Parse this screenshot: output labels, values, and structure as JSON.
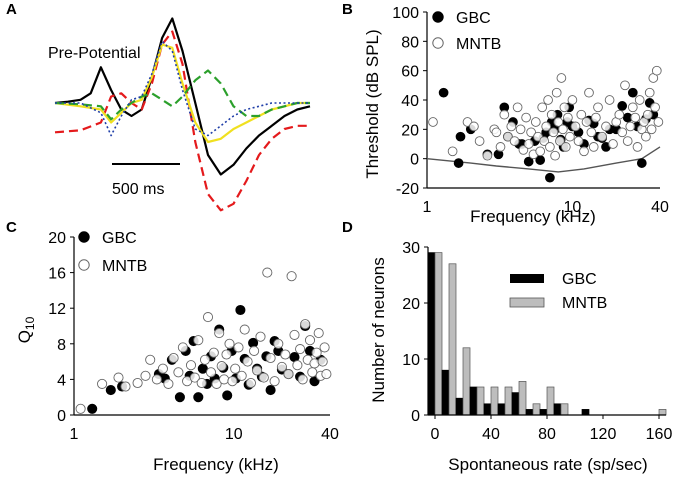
{
  "chart_data": [
    {
      "panel": "A",
      "type": "line",
      "annotation": "Pre-Potential",
      "scalebar_label": "500 ms",
      "series": [
        {
          "name": "black",
          "color": "#000000",
          "dash": "solid",
          "x": [
            0,
            5,
            10,
            14,
            18,
            22,
            26,
            30,
            34,
            38,
            42,
            46,
            50,
            55,
            60,
            65,
            70,
            75,
            80,
            85,
            90,
            95,
            100
          ],
          "y": [
            0.0,
            0.02,
            0.05,
            0.15,
            0.55,
            0.2,
            -0.1,
            -0.2,
            -0.1,
            0.4,
            1.0,
            1.3,
            0.8,
            0.0,
            -0.8,
            -1.1,
            -0.95,
            -0.7,
            -0.5,
            -0.35,
            -0.2,
            -0.1,
            -0.05
          ]
        },
        {
          "name": "red",
          "color": "#e41a1c",
          "dash": "dashed",
          "x": [
            0,
            10,
            18,
            22,
            26,
            30,
            34,
            38,
            42,
            46,
            50,
            55,
            60,
            65,
            70,
            75,
            80,
            85,
            90,
            95,
            100
          ],
          "y": [
            -0.45,
            -0.42,
            -0.3,
            0.1,
            0.15,
            0.0,
            -0.1,
            0.3,
            0.9,
            1.1,
            0.6,
            -0.6,
            -1.4,
            -1.65,
            -1.55,
            -1.2,
            -0.8,
            -0.55,
            -0.4,
            -0.35,
            -0.35
          ]
        },
        {
          "name": "yellow",
          "color": "#f0e020",
          "dash": "solid",
          "x": [
            0,
            10,
            18,
            22,
            26,
            30,
            34,
            38,
            42,
            46,
            50,
            55,
            60,
            65,
            70,
            75,
            80,
            85,
            90,
            95,
            100
          ],
          "y": [
            0.0,
            -0.05,
            -0.1,
            -0.3,
            -0.15,
            0.0,
            0.05,
            0.4,
            0.9,
            0.85,
            0.3,
            -0.3,
            -0.6,
            -0.55,
            -0.4,
            -0.3,
            -0.2,
            -0.1,
            -0.05,
            0.0,
            0.0
          ]
        },
        {
          "name": "green",
          "color": "#2ca02c",
          "dash": "dashed",
          "x": [
            0,
            10,
            18,
            22,
            26,
            30,
            34,
            38,
            42,
            46,
            50,
            55,
            60,
            65,
            70,
            75,
            80,
            85,
            90,
            95,
            100
          ],
          "y": [
            0.0,
            -0.02,
            -0.05,
            -0.25,
            -0.1,
            0.0,
            0.1,
            0.15,
            0.05,
            -0.05,
            0.1,
            0.35,
            0.5,
            0.3,
            -0.05,
            -0.2,
            -0.2,
            -0.1,
            -0.05,
            0.0,
            0.0
          ]
        },
        {
          "name": "blue",
          "color": "#1f3ea8",
          "dash": "dotted",
          "x": [
            0,
            10,
            18,
            22,
            26,
            30,
            34,
            38,
            42,
            46,
            50,
            55,
            60,
            65,
            70,
            75,
            80,
            85,
            90,
            95,
            100
          ],
          "y": [
            0.0,
            0.0,
            -0.15,
            -0.5,
            -0.2,
            0.05,
            0.1,
            0.45,
            0.95,
            0.8,
            0.2,
            -0.4,
            -0.5,
            -0.35,
            -0.2,
            -0.1,
            -0.05,
            0.0,
            0.0,
            0.0,
            0.0
          ]
        }
      ]
    },
    {
      "panel": "B",
      "type": "scatter",
      "xlabel": "Frequency (kHz)",
      "ylabel": "Threshold (dB SPL)",
      "xscale": "log",
      "xlim": [
        1,
        40
      ],
      "ylim": [
        -20,
        100
      ],
      "xticks": [
        1,
        10,
        40
      ],
      "xtick_labels": [
        "1",
        "10",
        "40"
      ],
      "yticks": [
        -20,
        0,
        20,
        40,
        60,
        80,
        100
      ],
      "ytick_labels": [
        "-20",
        "0",
        "20",
        "40",
        "60",
        "80",
        "100"
      ],
      "legend": [
        "GBC",
        "MNTB"
      ],
      "series": [
        {
          "name": "GBC",
          "marker": "filled",
          "x": [
            1.3,
            1.65,
            1.7,
            2.0,
            2.6,
            3.1,
            3.4,
            3.6,
            3.9,
            4.3,
            4.5,
            5.0,
            5.5,
            6.0,
            6.3,
            6.6,
            7.0,
            7.2,
            7.6,
            7.9,
            8.3,
            8.7,
            9.2,
            9.5,
            10,
            11,
            12,
            13,
            14,
            15,
            16,
            17,
            18,
            20,
            22,
            24,
            26,
            28,
            30,
            32,
            34,
            36
          ],
          "y": [
            45,
            -3,
            15,
            20,
            3,
            3,
            35,
            15,
            25,
            10,
            10,
            -2,
            12,
            -1,
            14,
            18,
            -13,
            25,
            20,
            30,
            13,
            8,
            25,
            35,
            22,
            18,
            10,
            26,
            24,
            15,
            14,
            8,
            20,
            20,
            36,
            28,
            45,
            22,
            -3,
            27,
            38,
            30
          ]
        },
        {
          "name": "MNTB",
          "marker": "open",
          "x": [
            1.1,
            1.5,
            1.9,
            2.1,
            2.3,
            2.6,
            2.9,
            3.0,
            3.2,
            3.4,
            3.6,
            3.8,
            4.0,
            4.2,
            4.4,
            4.6,
            4.8,
            5.0,
            5.2,
            5.4,
            5.6,
            5.8,
            6.0,
            6.2,
            6.4,
            6.6,
            6.8,
            7.0,
            7.2,
            7.4,
            7.6,
            7.8,
            8.0,
            8.2,
            8.4,
            8.6,
            8.8,
            9.0,
            9.3,
            9.6,
            10,
            10.5,
            11,
            11.5,
            12,
            12.5,
            13,
            13.5,
            14,
            14.5,
            15,
            16,
            17,
            18,
            19,
            20,
            21,
            22,
            23,
            24,
            25,
            26,
            27,
            28,
            29,
            30,
            31,
            32,
            33,
            34,
            35,
            36,
            37,
            38,
            39
          ],
          "y": [
            25,
            5,
            25,
            22,
            12,
            2,
            20,
            18,
            8,
            30,
            15,
            22,
            12,
            35,
            20,
            6,
            28,
            10,
            18,
            3,
            25,
            15,
            5,
            35,
            12,
            22,
            40,
            8,
            30,
            18,
            2,
            45,
            25,
            12,
            55,
            20,
            35,
            8,
            28,
            15,
            40,
            22,
            12,
            30,
            5,
            25,
            45,
            18,
            8,
            28,
            35,
            15,
            22,
            40,
            10,
            25,
            30,
            18,
            50,
            12,
            22,
            35,
            28,
            8,
            40,
            20,
            25,
            15,
            30,
            45,
            20,
            55,
            35,
            60,
            25
          ]
        }
      ],
      "curve": {
        "name": "threshold minimum",
        "color": "#555555",
        "x": [
          1,
          2,
          3,
          5,
          8,
          12,
          20,
          30,
          40
        ],
        "y": [
          0,
          -3,
          -5,
          -7,
          -9,
          -7,
          -3,
          0,
          8
        ]
      }
    },
    {
      "panel": "C",
      "type": "scatter",
      "xlabel": "Frequency (kHz)",
      "ylabel": "Q10",
      "ylabel_main": "Q",
      "ylabel_sub": "10",
      "xscale": "log",
      "xlim": [
        1,
        40
      ],
      "ylim": [
        0,
        20
      ],
      "xticks": [
        1,
        10,
        40
      ],
      "xtick_labels": [
        "1",
        "10",
        "40"
      ],
      "yticks": [
        0,
        4,
        8,
        12,
        16,
        20
      ],
      "ytick_labels": [
        "0",
        "4",
        "8",
        "12",
        "16",
        "20"
      ],
      "legend": [
        "GBC",
        "MNTB"
      ],
      "series": [
        {
          "name": "GBC",
          "marker": "filled",
          "x": [
            1.3,
            1.7,
            2.0,
            3.4,
            3.7,
            4.1,
            4.6,
            5.0,
            5.3,
            5.6,
            6.0,
            6.4,
            6.8,
            7.2,
            7.6,
            8.1,
            8.6,
            9.1,
            9.7,
            10.3,
            11,
            11.7,
            12.4,
            13.2,
            14,
            15,
            16,
            17,
            18,
            19,
            20,
            22,
            24,
            26,
            28,
            30,
            32,
            35
          ],
          "y": [
            0.7,
            2.8,
            3.2,
            4.6,
            4.1,
            6.2,
            2.0,
            7.2,
            4.4,
            8.3,
            2.0,
            5.2,
            3.5,
            6.6,
            4.1,
            9.6,
            5.3,
            2.2,
            7.2,
            4.1,
            11.8,
            6.3,
            3.4,
            8.1,
            5.2,
            4.3,
            6.6,
            2.8,
            8.3,
            7.2,
            5.1,
            4.6,
            6.5,
            4.3,
            10.0,
            7.2,
            3.8,
            6.2
          ]
        },
        {
          "name": "MNTB",
          "marker": "open",
          "x": [
            1.1,
            1.5,
            1.9,
            2.1,
            2.5,
            2.8,
            3.0,
            3.3,
            3.6,
            3.9,
            4.2,
            4.5,
            4.8,
            5.1,
            5.4,
            5.7,
            6.0,
            6.3,
            6.6,
            6.9,
            7.2,
            7.5,
            7.8,
            8.1,
            8.4,
            8.7,
            9.0,
            9.4,
            9.8,
            10.2,
            10.7,
            11.2,
            11.7,
            12.2,
            12.8,
            13.4,
            14,
            14.7,
            15.4,
            16.2,
            17,
            18,
            19,
            20,
            21,
            22,
            23,
            24,
            25,
            26,
            27,
            28,
            29,
            30,
            31,
            32,
            33,
            34,
            35,
            36,
            37,
            38
          ],
          "y": [
            0.7,
            3.5,
            4.2,
            3.2,
            3.6,
            4.4,
            6.2,
            4.0,
            5.2,
            3.5,
            6.4,
            4.8,
            7.6,
            3.8,
            5.6,
            4.2,
            8.4,
            3.6,
            6.2,
            11.0,
            4.8,
            7.0,
            3.5,
            9.2,
            5.5,
            4.0,
            6.8,
            8.0,
            3.8,
            5.2,
            7.6,
            4.4,
            9.6,
            6.0,
            3.6,
            7.2,
            5.0,
            8.8,
            4.2,
            16.0,
            6.4,
            3.8,
            8.0,
            5.4,
            6.8,
            4.6,
            15.6,
            9.0,
            5.6,
            7.4,
            4.0,
            10.2,
            6.2,
            8.4,
            4.8,
            5.8,
            7.0,
            9.2,
            4.4,
            6.0,
            7.6,
            4.6
          ]
        }
      ]
    },
    {
      "panel": "D",
      "type": "bar",
      "xlabel": "Spontaneous rate (sp/sec)",
      "ylabel": "Number of neurons",
      "xlim": [
        0,
        160
      ],
      "ylim": [
        0,
        30
      ],
      "xticks": [
        0,
        40,
        80,
        120,
        160
      ],
      "xtick_labels": [
        "0",
        "40",
        "80",
        "120",
        "160"
      ],
      "yticks": [
        0,
        10,
        20,
        30
      ],
      "ytick_labels": [
        "0",
        "10",
        "20",
        "30"
      ],
      "bin_width": 10,
      "bin_starts": [
        0,
        10,
        20,
        30,
        40,
        50,
        60,
        70,
        80,
        90,
        100,
        110,
        120,
        130,
        140,
        150,
        160
      ],
      "legend": [
        "GBC",
        "MNTB"
      ],
      "series": [
        {
          "name": "GBC",
          "color": "#000000",
          "values": [
            29,
            8,
            3,
            5,
            2,
            2,
            4,
            1,
            1,
            2,
            0,
            1,
            0,
            0,
            0,
            0,
            0
          ]
        },
        {
          "name": "MNTB",
          "color": "#bdbdbd",
          "values": [
            29,
            27,
            12,
            5,
            5,
            5,
            6,
            2,
            5,
            2,
            0,
            0,
            0,
            0,
            0,
            0,
            1
          ]
        }
      ]
    }
  ]
}
